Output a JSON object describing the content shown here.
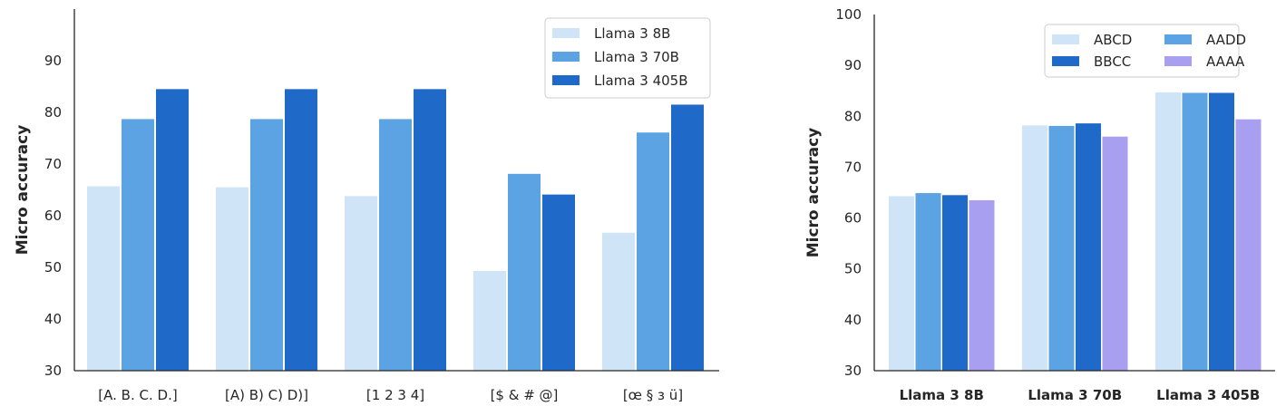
{
  "chart_data": [
    {
      "type": "bar",
      "ylabel": "Micro accuracy",
      "ylim": [
        30,
        100
      ],
      "yticks": [
        30,
        40,
        50,
        60,
        70,
        80,
        90
      ],
      "categories": [
        "[A. B. C. D.]",
        "[A) B) C) D)]",
        "[1 2 3 4]",
        "[$ & # @]",
        "[œ § з ü]"
      ],
      "series": [
        {
          "name": "Llama 3 8B",
          "color": "#cfe4f7",
          "values": [
            65.7,
            65.5,
            63.8,
            49.3,
            56.7
          ]
        },
        {
          "name": "Llama 3 70B",
          "color": "#5ba3e2",
          "values": [
            78.7,
            78.7,
            78.7,
            68.1,
            76.1
          ]
        },
        {
          "name": "Llama 3 405B",
          "color": "#1f69c9",
          "values": [
            84.5,
            84.5,
            84.5,
            64.1,
            81.5
          ]
        }
      ],
      "legend_position": "top-right",
      "grid": false
    },
    {
      "type": "bar",
      "ylabel": "Micro accuracy",
      "ylim": [
        30,
        100
      ],
      "yticks": [
        30,
        40,
        50,
        60,
        70,
        80,
        90,
        100
      ],
      "categories": [
        "Llama 3 8B",
        "Llama 3 70B",
        "Llama 3 405B"
      ],
      "series": [
        {
          "name": "ABCD",
          "color": "#cfe4f7",
          "values": [
            64.3,
            78.2,
            84.7
          ]
        },
        {
          "name": "AADD",
          "color": "#5ba3e2",
          "values": [
            64.9,
            78.1,
            84.6
          ]
        },
        {
          "name": "BBCC",
          "color": "#1f69c9",
          "values": [
            64.5,
            78.6,
            84.6
          ]
        },
        {
          "name": "AAAA",
          "color": "#a99ff0",
          "values": [
            63.5,
            76.0,
            79.4
          ]
        }
      ],
      "legend_position": "top-right",
      "grid": false
    }
  ]
}
